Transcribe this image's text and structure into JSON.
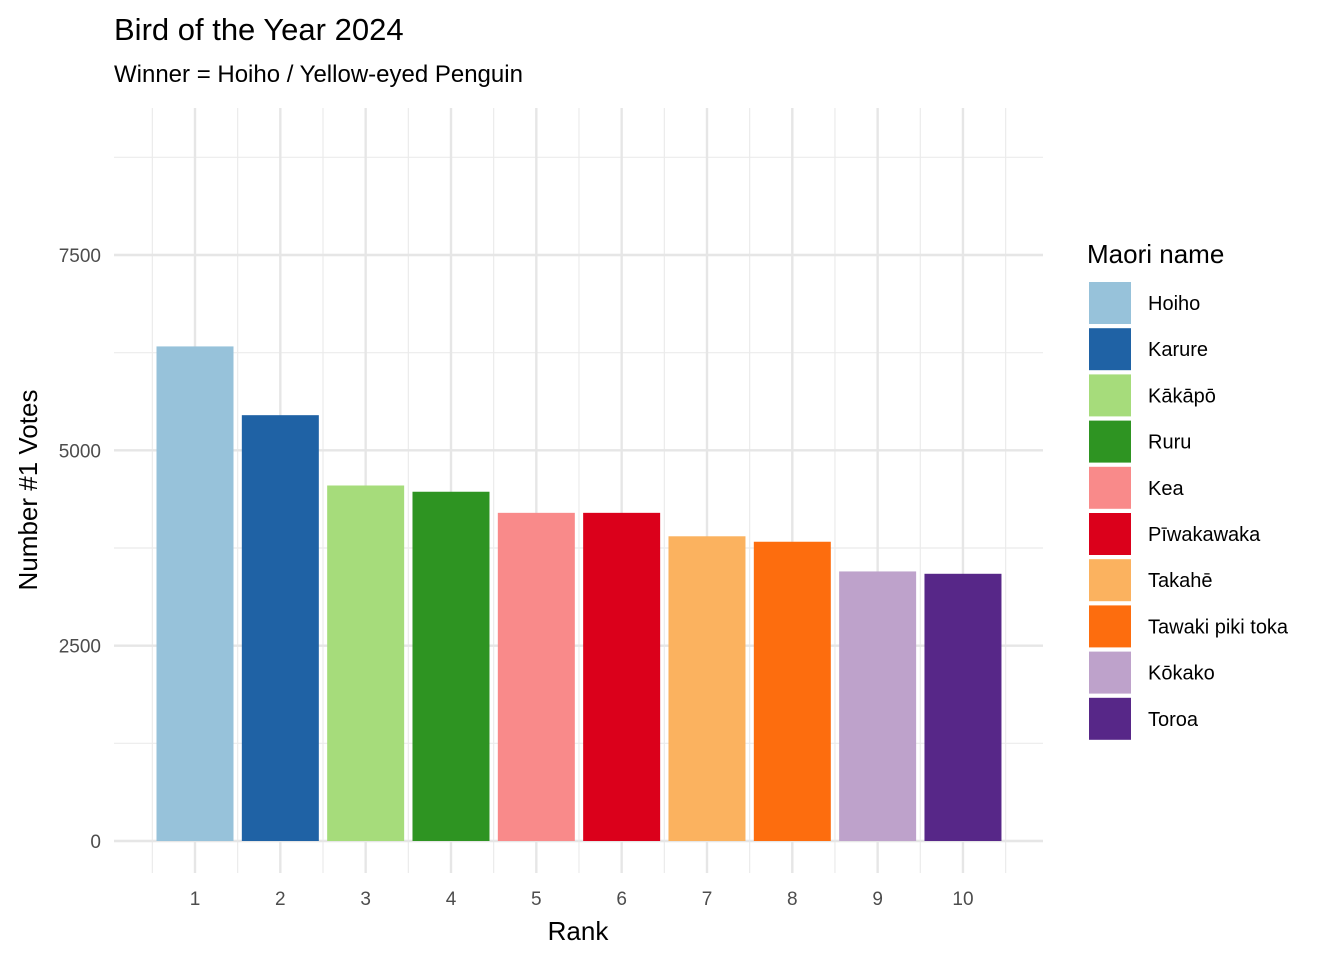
{
  "chart_data": {
    "type": "bar",
    "title": "Bird of the Year 2024",
    "subtitle": "Winner = Hoiho / Yellow-eyed Penguin",
    "xlabel": "Rank",
    "ylabel": "Number #1 Votes",
    "categories": [
      "1",
      "2",
      "3",
      "4",
      "5",
      "6",
      "7",
      "8",
      "9",
      "10"
    ],
    "values": [
      6330,
      5450,
      4550,
      4470,
      4200,
      4200,
      3900,
      3830,
      3450,
      3420
    ],
    "names": [
      "Hoiho",
      "Karure",
      "Kākāpō",
      "Ruru",
      "Kea",
      "Pīwakawaka",
      "Takahē",
      "Tawaki piki toka",
      "Kōkako",
      "Toroa"
    ],
    "colors": [
      "#97c2da",
      "#1f62a5",
      "#a6dc7b",
      "#2e9422",
      "#f98a8a",
      "#db001b",
      "#fbb25f",
      "#fd6d0e",
      "#bea2cb",
      "#572788"
    ],
    "ylim": [
      0,
      8750
    ],
    "yticks": [
      0,
      2500,
      5000,
      7500
    ],
    "grid": true,
    "legend": {
      "title": "Maori name",
      "position": "right",
      "entries": [
        "Hoiho",
        "Karure",
        "Kākāpō",
        "Ruru",
        "Kea",
        "Pīwakawaka",
        "Takahē",
        "Tawaki piki toka",
        "Kōkako",
        "Toroa"
      ]
    }
  }
}
